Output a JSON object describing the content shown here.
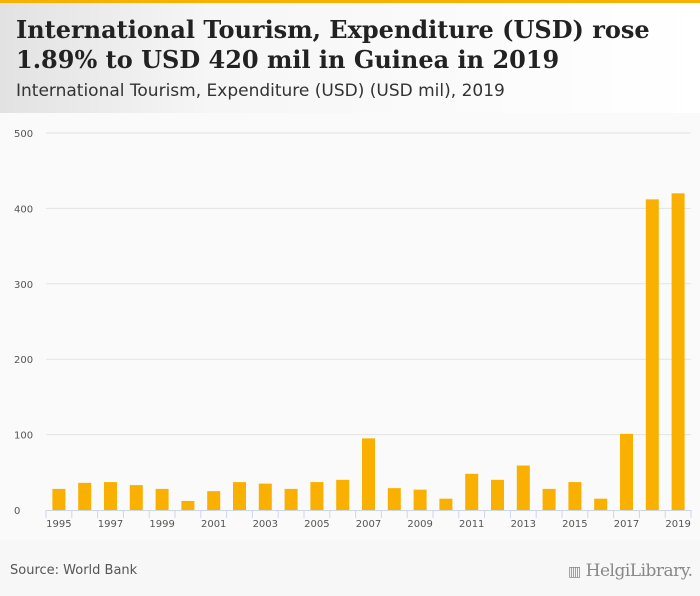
{
  "header": {
    "title": "International Tourism, Expenditure (USD) rose 1.89% to USD 420 mil in Guinea in 2019",
    "subtitle": "International Tourism, Expenditure (USD) (USD mil), 2019"
  },
  "footer": {
    "source": "Source: World Bank",
    "logo_text": "HelgiLibrary."
  },
  "colors": {
    "bar": "#f9b000",
    "accent": "#f9b000"
  },
  "chart_data": {
    "type": "bar",
    "title": "International Tourism, Expenditure (USD) (USD mil), 2019",
    "xlabel": "",
    "ylabel": "",
    "ylim": [
      0,
      500
    ],
    "yticks": [
      0,
      100,
      200,
      300,
      400,
      500
    ],
    "categories": [
      "1995",
      "1996",
      "1997",
      "1998",
      "1999",
      "2000",
      "2001",
      "2002",
      "2003",
      "2004",
      "2005",
      "2006",
      "2007",
      "2008",
      "2009",
      "2010",
      "2011",
      "2012",
      "2013",
      "2014",
      "2015",
      "2016",
      "2017",
      "2018",
      "2019"
    ],
    "xtick_labels": [
      "1995",
      "1997",
      "1999",
      "2001",
      "2003",
      "2005",
      "2007",
      "2009",
      "2011",
      "2013",
      "2015",
      "2017",
      "2019"
    ],
    "values": [
      28,
      36,
      37,
      33,
      28,
      12,
      25,
      37,
      35,
      28,
      37,
      40,
      95,
      29,
      27,
      15,
      48,
      40,
      59,
      28,
      37,
      15,
      101,
      412,
      420
    ],
    "grid": true,
    "legend": "none"
  }
}
